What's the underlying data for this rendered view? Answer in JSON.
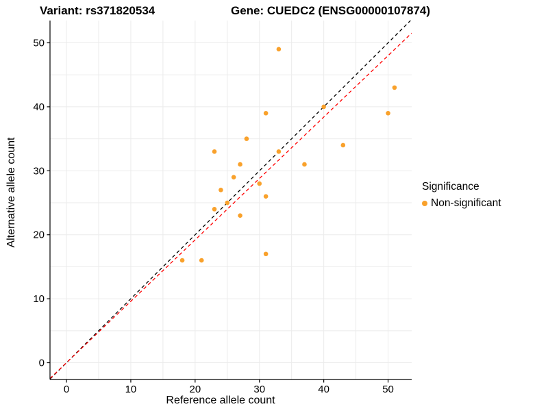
{
  "titles": {
    "variant": "Variant: rs371820534",
    "gene": "Gene: CUEDC2 (ENSG00000107874)"
  },
  "chart_data": {
    "type": "scatter",
    "title_left": "Variant: rs371820534",
    "title_right": "Gene: CUEDC2 (ENSG00000107874)",
    "xlabel": "Reference allele count",
    "ylabel": "Alternative allele count",
    "xlim": [
      -2.56,
      53.67
    ],
    "ylim": [
      -2.62,
      53.48
    ],
    "x_ticks": [
      0,
      10,
      20,
      30,
      40,
      50
    ],
    "y_ticks": [
      0,
      10,
      20,
      30,
      40,
      50
    ],
    "grid_step": 5,
    "grid_on": true,
    "points": [
      [
        18,
        16
      ],
      [
        21,
        16
      ],
      [
        23,
        24
      ],
      [
        23,
        33
      ],
      [
        24,
        27
      ],
      [
        25,
        25
      ],
      [
        26,
        29
      ],
      [
        27,
        23
      ],
      [
        27,
        31
      ],
      [
        28,
        35
      ],
      [
        30,
        28
      ],
      [
        31,
        17
      ],
      [
        31,
        26
      ],
      [
        31,
        39
      ],
      [
        33,
        33
      ],
      [
        33,
        49
      ],
      [
        37,
        31
      ],
      [
        40,
        40
      ],
      [
        43,
        34
      ],
      [
        50,
        39
      ],
      [
        51,
        43
      ]
    ],
    "lines": [
      {
        "name": "identity-line",
        "slope": 1,
        "intercept": 0,
        "color": "#000000",
        "dash": "5 4"
      },
      {
        "name": "ratio-line",
        "slope": 0.96,
        "intercept": 0,
        "color": "#FF0000",
        "dash": "5 4"
      }
    ],
    "point_color": "#F9A12B",
    "grid_color": "#EBEBEB",
    "axis_color": "#000000",
    "legend": {
      "position": "right",
      "title": "Significance",
      "items": [
        {
          "label": "Non-significant",
          "color": "#F9A12B"
        }
      ]
    }
  }
}
